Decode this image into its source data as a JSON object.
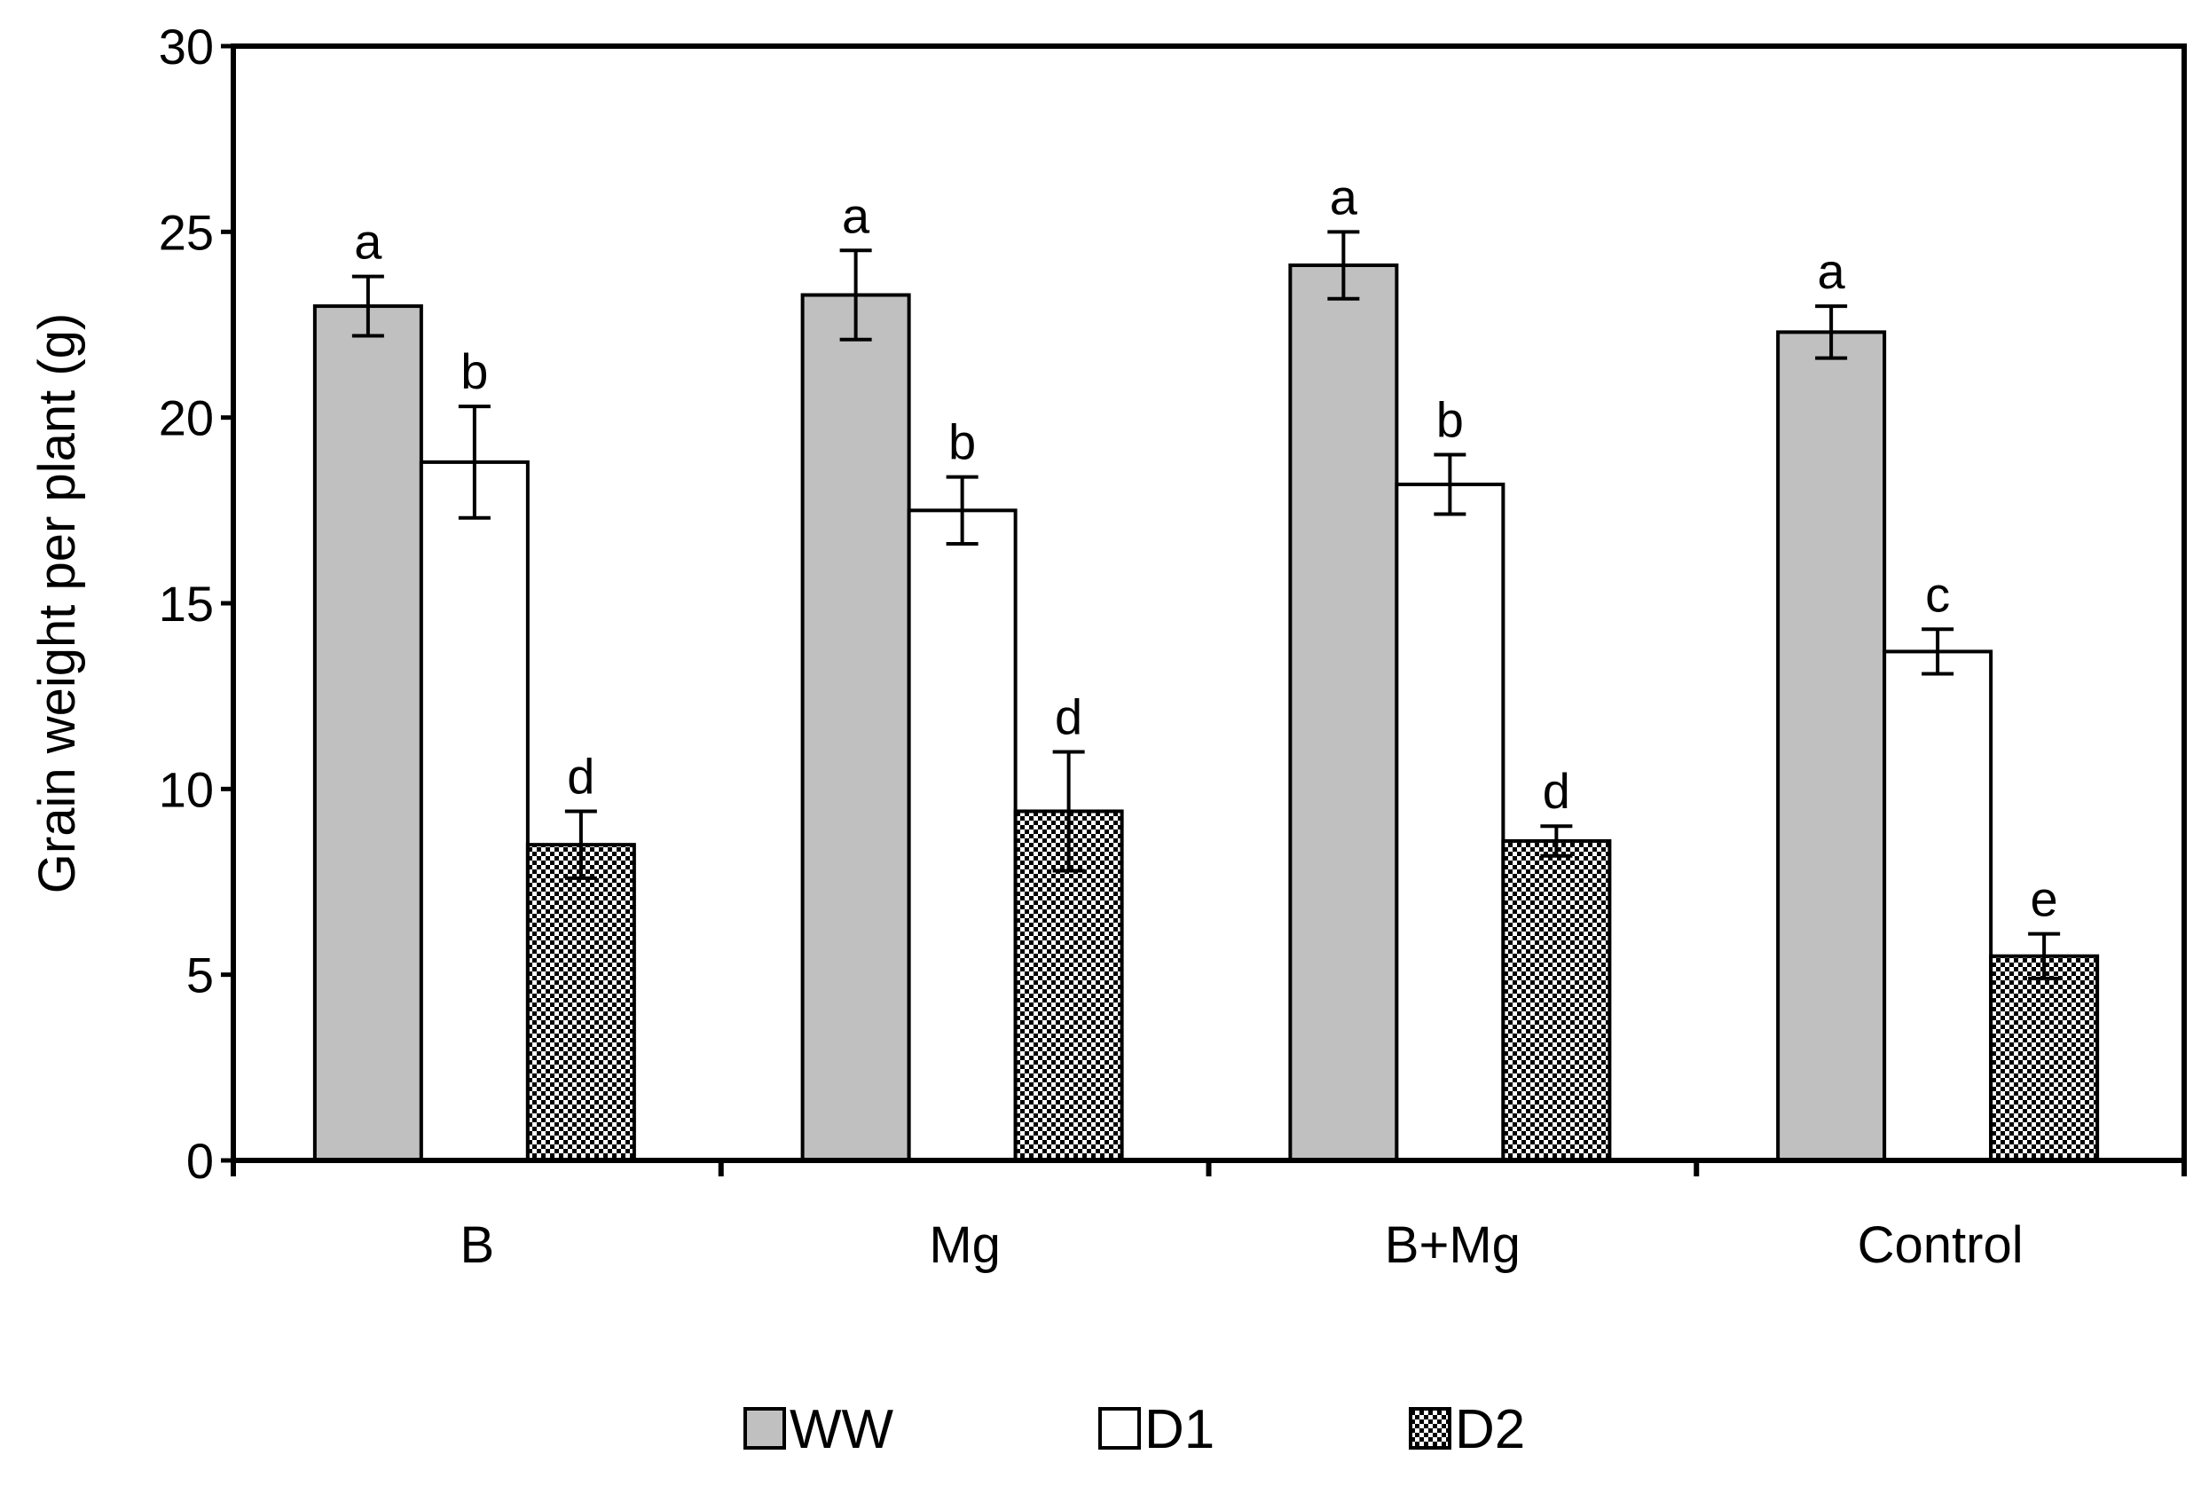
{
  "chart_data": {
    "type": "bar",
    "title": "",
    "xlabel": "",
    "ylabel": "Grain weight per plant (g)",
    "ylim": [
      0,
      30
    ],
    "yticks": [
      0,
      5,
      10,
      15,
      20,
      25,
      30
    ],
    "grid": false,
    "legend_position": "bottom",
    "categories": [
      "B",
      "Mg",
      "B+Mg",
      "Control"
    ],
    "series": [
      {
        "name": "WW",
        "fill": "gray",
        "values": [
          23.0,
          23.3,
          24.1,
          22.3
        ],
        "errors": [
          0.8,
          1.2,
          0.9,
          0.7
        ],
        "labels": [
          "a",
          "a",
          "a",
          "a"
        ]
      },
      {
        "name": "D1",
        "fill": "white",
        "values": [
          18.8,
          17.5,
          18.2,
          13.7
        ],
        "errors": [
          1.5,
          0.9,
          0.8,
          0.6
        ],
        "labels": [
          "b",
          "b",
          "b",
          "c"
        ]
      },
      {
        "name": "D2",
        "fill": "checker",
        "values": [
          8.5,
          9.4,
          8.6,
          5.5
        ],
        "errors": [
          0.9,
          1.6,
          0.4,
          0.6
        ],
        "labels": [
          "d",
          "d",
          "d",
          "e"
        ]
      }
    ]
  },
  "colors": {
    "ww_fill": "#c0c0c0",
    "d1_fill": "#ffffff",
    "d2_dark": "#000000",
    "axis": "#000000",
    "background": "#ffffff"
  }
}
